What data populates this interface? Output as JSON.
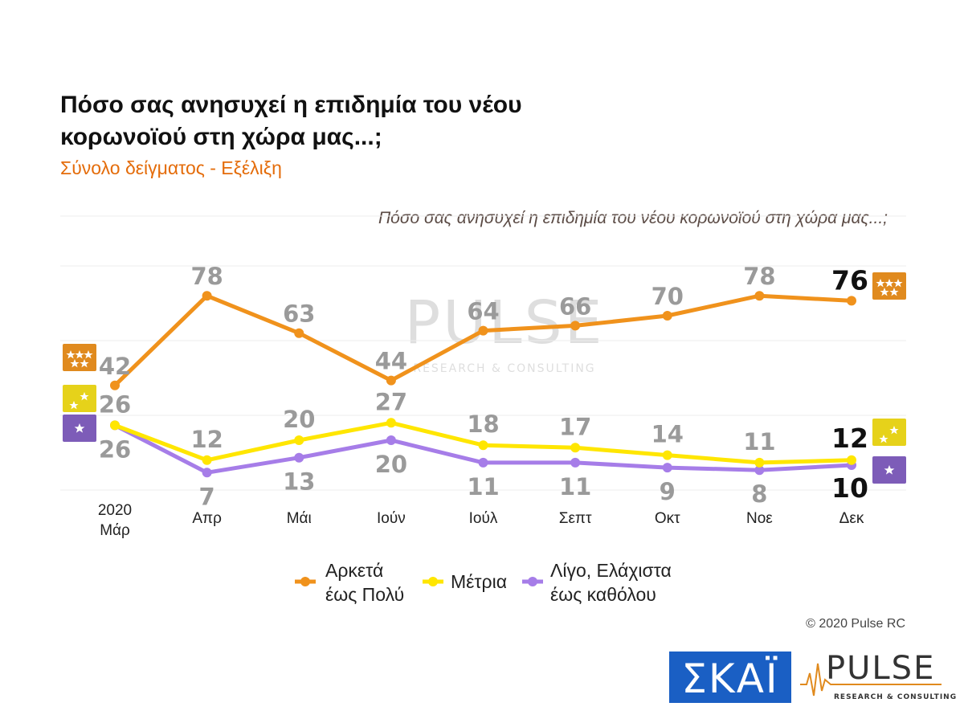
{
  "header": {
    "title_line1": "Πόσο σας ανησυχεί η επιδημία του νέου",
    "title_line2": "κορωνοϊού στη χώρα μας...;",
    "subtitle": "Σύνολο δείγματος - Εξέλιξη",
    "question": "Πόσο σας ανησυχεί η επιδημία του νέου κορωνοϊού στη χώρα μας...;"
  },
  "chart_data": {
    "type": "line",
    "categories": [
      "2020 Μάρ",
      "Απρ",
      "Μάι",
      "Ιούν",
      "Ιούλ",
      "Σεπτ",
      "Οκτ",
      "Νοε",
      "Δεκ"
    ],
    "series": [
      {
        "name": "Αρκετά έως Πολύ",
        "color": "#f0921c",
        "values": [
          42,
          78,
          63,
          44,
          64,
          66,
          70,
          78,
          76
        ]
      },
      {
        "name": "Μέτρια",
        "color": "#ffe600",
        "values": [
          26,
          12,
          20,
          27,
          18,
          17,
          14,
          11,
          12
        ]
      },
      {
        "name": "Λίγο, Ελάχιστα έως καθόλου",
        "color": "#a67de8",
        "values": [
          26,
          7,
          13,
          20,
          11,
          11,
          9,
          8,
          10
        ]
      }
    ],
    "ylim": [
      0,
      100
    ],
    "grid": true,
    "legend_position": "bottom"
  },
  "legend": [
    {
      "line1": "Αρκετά",
      "line2": "έως Πολύ"
    },
    {
      "line1": "Μέτρια",
      "line2": ""
    },
    {
      "line1": "Λίγο, Ελάχιστα",
      "line2": "έως καθόλου"
    }
  ],
  "badge_colors": [
    "#e08a1e",
    "#e6d21a",
    "#7d5cb8"
  ],
  "icons": [
    "three-stars-icon",
    "two-stars-icon",
    "one-star-icon"
  ],
  "watermark": {
    "brand": "PULSE",
    "tagline": "RESEARCH & CONSULTING"
  },
  "footer": {
    "copyright": "© 2020 Pulse RC",
    "logo_skai": "ΣΚΑΪ",
    "logo_pulse": "PULSE",
    "logo_pulse_tag": "RESEARCH & CONSULTING",
    "skai_color": "#1a5fc4"
  }
}
